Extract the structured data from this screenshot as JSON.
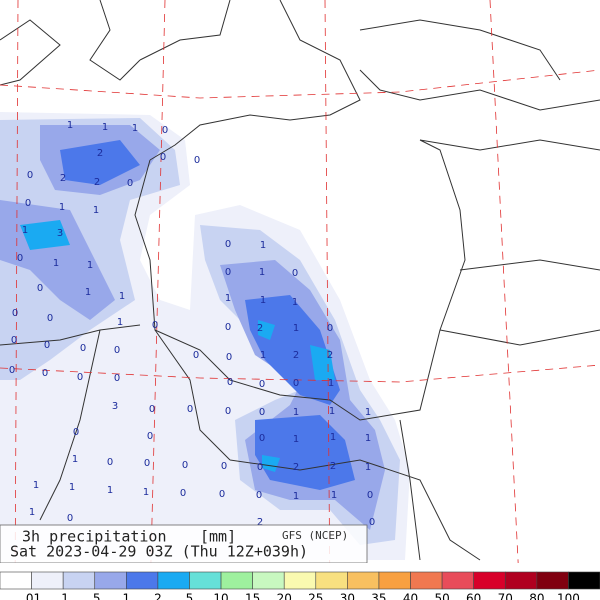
{
  "caption": {
    "title": "3h precipitation",
    "unit": "[mm]",
    "model": "GFS (NCEP)",
    "time": "Sat 2023-04-29 03Z (Thu 12Z+039h)"
  },
  "colorbar": {
    "colors": [
      "#ffffff",
      "#eef0fa",
      "#c8d3f2",
      "#98a8ea",
      "#4c78ea",
      "#1aaaf2",
      "#66e0d8",
      "#9ef09e",
      "#c8f8c0",
      "#fafab0",
      "#f8e080",
      "#f8c060",
      "#f8a040",
      "#f07850",
      "#e84c5a",
      "#d8002a",
      "#b00020",
      "#800010",
      "#000000"
    ],
    "labels": [
      ".01",
      ".1",
      ".5",
      "1",
      "2",
      "5",
      "10",
      "15",
      "20",
      "25",
      "30",
      "35",
      "40",
      "50",
      "60",
      "70",
      "80",
      "100"
    ]
  },
  "map_labels": [
    "1",
    "1",
    "0",
    "1",
    "2",
    "2",
    "2",
    "0",
    "0",
    "0",
    "0",
    "1",
    "1",
    "0",
    "3",
    "1",
    "0",
    "1",
    "1",
    "0",
    "1",
    "0",
    "1",
    "0",
    "0",
    "1",
    "1",
    "1",
    "1",
    "1",
    "0",
    "0",
    "1",
    "0",
    "2",
    "1",
    "0",
    "0",
    "0",
    "0",
    "0",
    "0",
    "1",
    "2",
    "2",
    "0",
    "0",
    "0",
    "0",
    "0",
    "0",
    "0",
    "0",
    "0",
    "1",
    "3",
    "0",
    "0",
    "0",
    "0",
    "1",
    "1",
    "1",
    "0",
    "0",
    "0",
    "1",
    "1",
    "1",
    "1",
    "0",
    "0",
    "0",
    "0",
    "0",
    "2",
    "2",
    "1",
    "1",
    "1",
    "1",
    "1",
    "0",
    "0",
    "0",
    "1",
    "1",
    "0",
    "1",
    "0",
    "0",
    "2"
  ]
}
